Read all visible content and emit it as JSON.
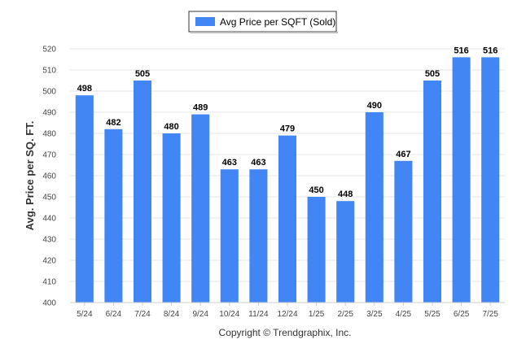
{
  "chart_data": {
    "type": "bar",
    "categories": [
      "5/24",
      "6/24",
      "7/24",
      "8/24",
      "9/24",
      "10/24",
      "11/24",
      "12/24",
      "1/25",
      "2/25",
      "3/25",
      "4/25",
      "5/25",
      "6/25",
      "7/25"
    ],
    "series": [
      {
        "name": "Avg Price per SQFT (Sold)",
        "color": "#4285F4",
        "values": [
          498,
          482,
          505,
          480,
          489,
          463,
          463,
          479,
          450,
          448,
          490,
          467,
          505,
          516,
          516
        ]
      }
    ],
    "ylabel": "Avg. Price per SQ. FT.",
    "xlabel": "",
    "ylim": [
      400,
      520
    ],
    "yticks": [
      400,
      410,
      420,
      430,
      440,
      450,
      460,
      470,
      480,
      490,
      500,
      510,
      520
    ],
    "grid": true,
    "legend_position": "top-center",
    "data_labels": true
  },
  "footer": {
    "copyright": "Copyright © Trendgraphix, Inc."
  }
}
